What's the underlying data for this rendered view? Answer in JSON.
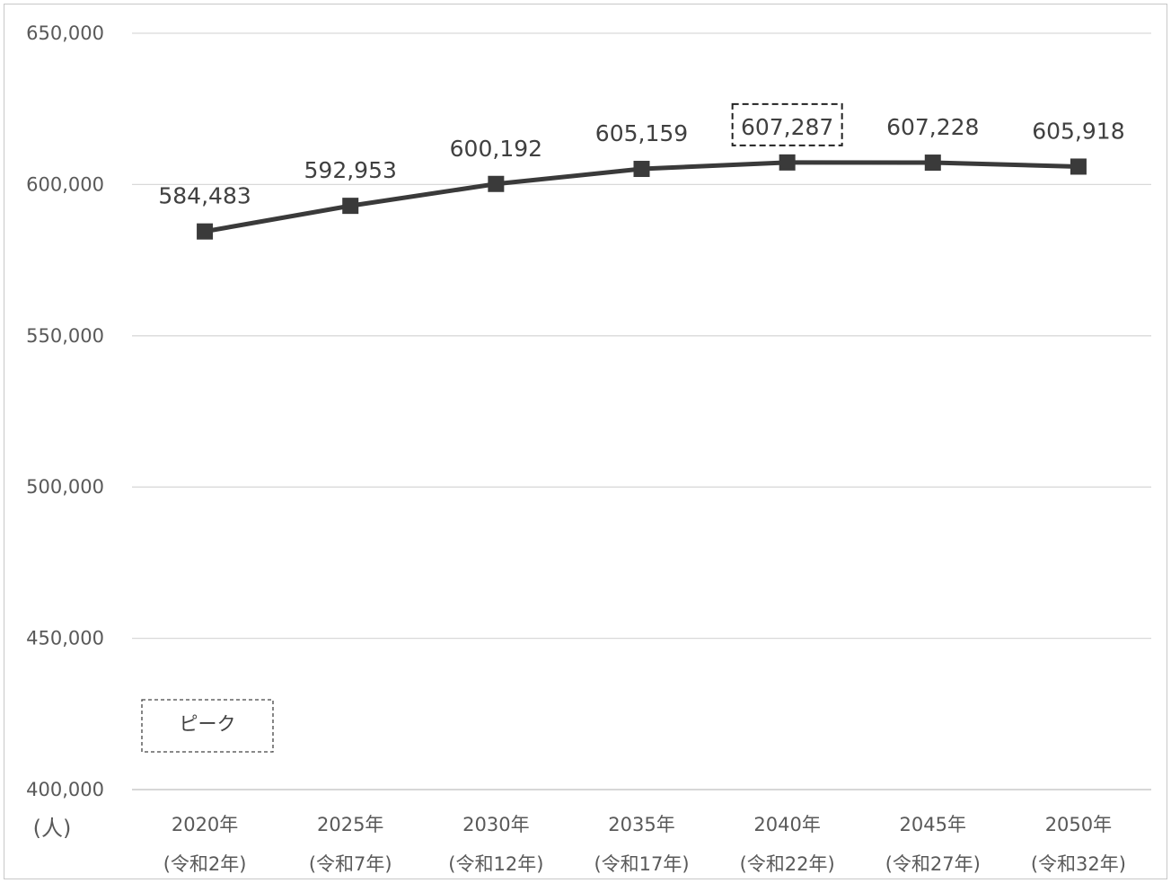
{
  "chart_data": {
    "type": "line",
    "unit_label": "(人)",
    "y_ticks": [
      "650,000",
      "600,000",
      "550,000",
      "500,000",
      "450,000",
      "400,000"
    ],
    "ylim": [
      400000,
      650000
    ],
    "grid": true,
    "categories": [
      [
        "2020年",
        "(令和2年)"
      ],
      [
        "2025年",
        "(令和7年)"
      ],
      [
        "2030年",
        "(令和12年)"
      ],
      [
        "2035年",
        "(令和17年)"
      ],
      [
        "2040年",
        "(令和22年)"
      ],
      [
        "2045年",
        "(令和27年)"
      ],
      [
        "2050年",
        "(令和32年)"
      ]
    ],
    "series": [
      {
        "values": [
          584483,
          592953,
          600192,
          605159,
          607287,
          607228,
          605918
        ],
        "labels": [
          "584,483",
          "592,953",
          "600,192",
          "605,159",
          "607,287",
          "607,228",
          "605,918"
        ],
        "color": "#3a3a3a",
        "marker": "square"
      }
    ],
    "highlight_index": 4,
    "legend_box_text": "ピーク"
  }
}
